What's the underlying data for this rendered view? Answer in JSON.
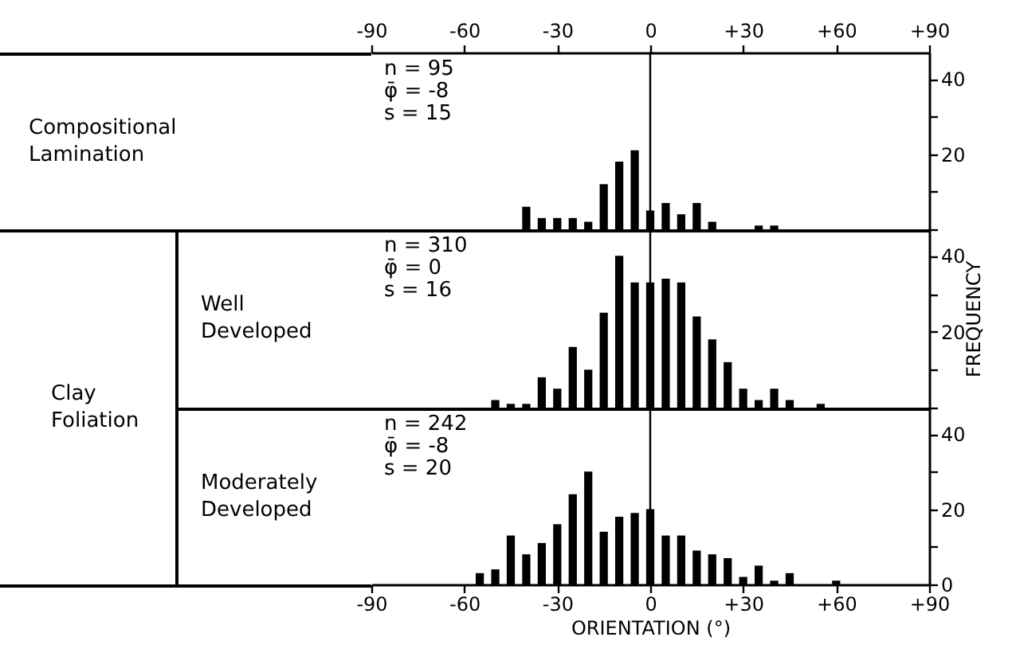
{
  "chart_data": [
    {
      "type": "histogram",
      "annotations": [
        "n = 95",
        "φ̄ = -8",
        "s = 15",
        "Compositional Lamination"
      ],
      "color": "#000000",
      "bins": [
        -42.5,
        -37.5,
        -32.5,
        -27.5,
        -22.5,
        -17.5,
        -12.5,
        -7.5,
        -2.5,
        2.5,
        7.5,
        12.5,
        17.5,
        22.5,
        27.5,
        32.5,
        37.5,
        42.5
      ],
      "values": [
        6,
        3,
        3,
        3,
        2,
        12,
        18,
        21,
        5,
        7,
        4,
        7,
        2,
        0,
        0,
        1,
        1
      ],
      "xlim": [
        -90,
        90
      ],
      "xticks": [
        -90,
        -60,
        -30,
        0,
        {
          "value": 30,
          "label": "+30"
        },
        {
          "value": 60,
          "label": "+60"
        },
        {
          "value": 90,
          "label": "+90"
        }
      ],
      "ylim": [
        0,
        47
      ],
      "yticks": [
        {
          "value": 0,
          "label": null
        },
        {
          "value": 10,
          "label": null
        },
        20,
        {
          "value": 30,
          "label": null
        },
        40
      ],
      "ref_lines": [
        {
          "axis": "x",
          "value": 0
        }
      ],
      "grid": false
    },
    {
      "type": "histogram",
      "annotations": [
        "n = 310",
        "φ̄ = 0",
        "s = 16",
        "Well Developed",
        "Clay Foliation"
      ],
      "color": "#000000",
      "ylabel": "FREQUENCY",
      "bins": [
        -52.5,
        -47.5,
        -42.5,
        -37.5,
        -32.5,
        -27.5,
        -22.5,
        -17.5,
        -12.5,
        -7.5,
        -2.5,
        2.5,
        7.5,
        12.5,
        17.5,
        22.5,
        27.5,
        32.5,
        37.5,
        42.5,
        47.5,
        52.5,
        57.5
      ],
      "values": [
        2,
        1,
        1,
        8,
        5,
        16,
        10,
        25,
        40,
        33,
        33,
        34,
        33,
        24,
        18,
        12,
        5,
        2,
        5,
        2,
        0,
        1
      ],
      "xlim": [
        -90,
        90
      ],
      "tick_labels": "y",
      "ylim": [
        0,
        47
      ],
      "yticks": [
        {
          "value": 0,
          "label": null
        },
        {
          "value": 10,
          "label": null
        },
        20,
        {
          "value": 30,
          "label": null
        },
        40
      ],
      "ref_lines": [
        {
          "axis": "x",
          "value": 0
        }
      ],
      "grid": false
    },
    {
      "type": "histogram",
      "annotations": [
        "n = 242",
        "φ̄ = -8",
        "s = 20",
        "Moderately Developed"
      ],
      "color": "#000000",
      "xlabel": "ORIENTATION (°)",
      "bins": [
        -57.5,
        -52.5,
        -47.5,
        -42.5,
        -37.5,
        -32.5,
        -27.5,
        -22.5,
        -17.5,
        -12.5,
        -7.5,
        -2.5,
        2.5,
        7.5,
        12.5,
        17.5,
        22.5,
        27.5,
        32.5,
        37.5,
        42.5,
        47.5,
        52.5,
        57.5,
        62.5
      ],
      "values": [
        3,
        4,
        13,
        8,
        11,
        16,
        24,
        30,
        14,
        18,
        19,
        20,
        13,
        13,
        9,
        8,
        7,
        2,
        5,
        1,
        3,
        0,
        0,
        1
      ],
      "xlim": [
        -90,
        90
      ],
      "xticks": [
        -90,
        -60,
        -30,
        0,
        {
          "value": 30,
          "label": "+30"
        },
        {
          "value": 60,
          "label": "+60"
        },
        {
          "value": 90,
          "label": "+90"
        }
      ],
      "ylim": [
        0,
        47
      ],
      "yticks": [
        0,
        {
          "value": 10,
          "label": null
        },
        20,
        {
          "value": 30,
          "label": null
        },
        40
      ],
      "ref_lines": [
        {
          "axis": "x",
          "value": 0
        }
      ],
      "grid": false
    }
  ]
}
